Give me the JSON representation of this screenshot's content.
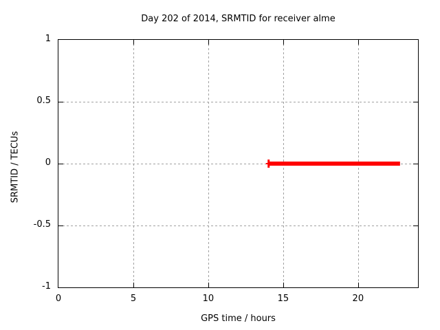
{
  "figure": {
    "background": "#ffffff",
    "border_color": "#000000"
  },
  "chart_data": {
    "type": "line",
    "title": "Day 202 of 2014, SRMTID for receiver alme",
    "xlabel": "GPS time / hours",
    "ylabel": "SRMTID / TECUs",
    "xlim": [
      0,
      24
    ],
    "ylim": [
      -1,
      1
    ],
    "xticks": {
      "values": [
        0,
        5,
        10,
        15,
        20
      ],
      "labels": [
        "0",
        "5",
        "10",
        "15",
        "20"
      ]
    },
    "yticks": {
      "values": [
        -1,
        -0.5,
        0,
        0.5,
        1
      ],
      "labels": [
        "-1",
        "-0.5",
        "0",
        "0.5",
        "1"
      ]
    },
    "grid": {
      "enabled": true,
      "style": "dashed",
      "color": "#a0a0a0"
    },
    "legend": "none",
    "series": [
      {
        "name": "SRMTID",
        "color": "#ff0000",
        "segments": [
          {
            "x1": 14.03,
            "y1": 0,
            "x2": 22.8,
            "y2": 0,
            "stroke_px": 6
          },
          {
            "x1": 13.85,
            "y1": 0,
            "x2": 14.03,
            "y2": 0,
            "stroke_px": 2
          },
          {
            "x1": 14.03,
            "y1": -0.033,
            "x2": 14.03,
            "y2": 0.033,
            "stroke_px": 3
          }
        ]
      }
    ]
  }
}
